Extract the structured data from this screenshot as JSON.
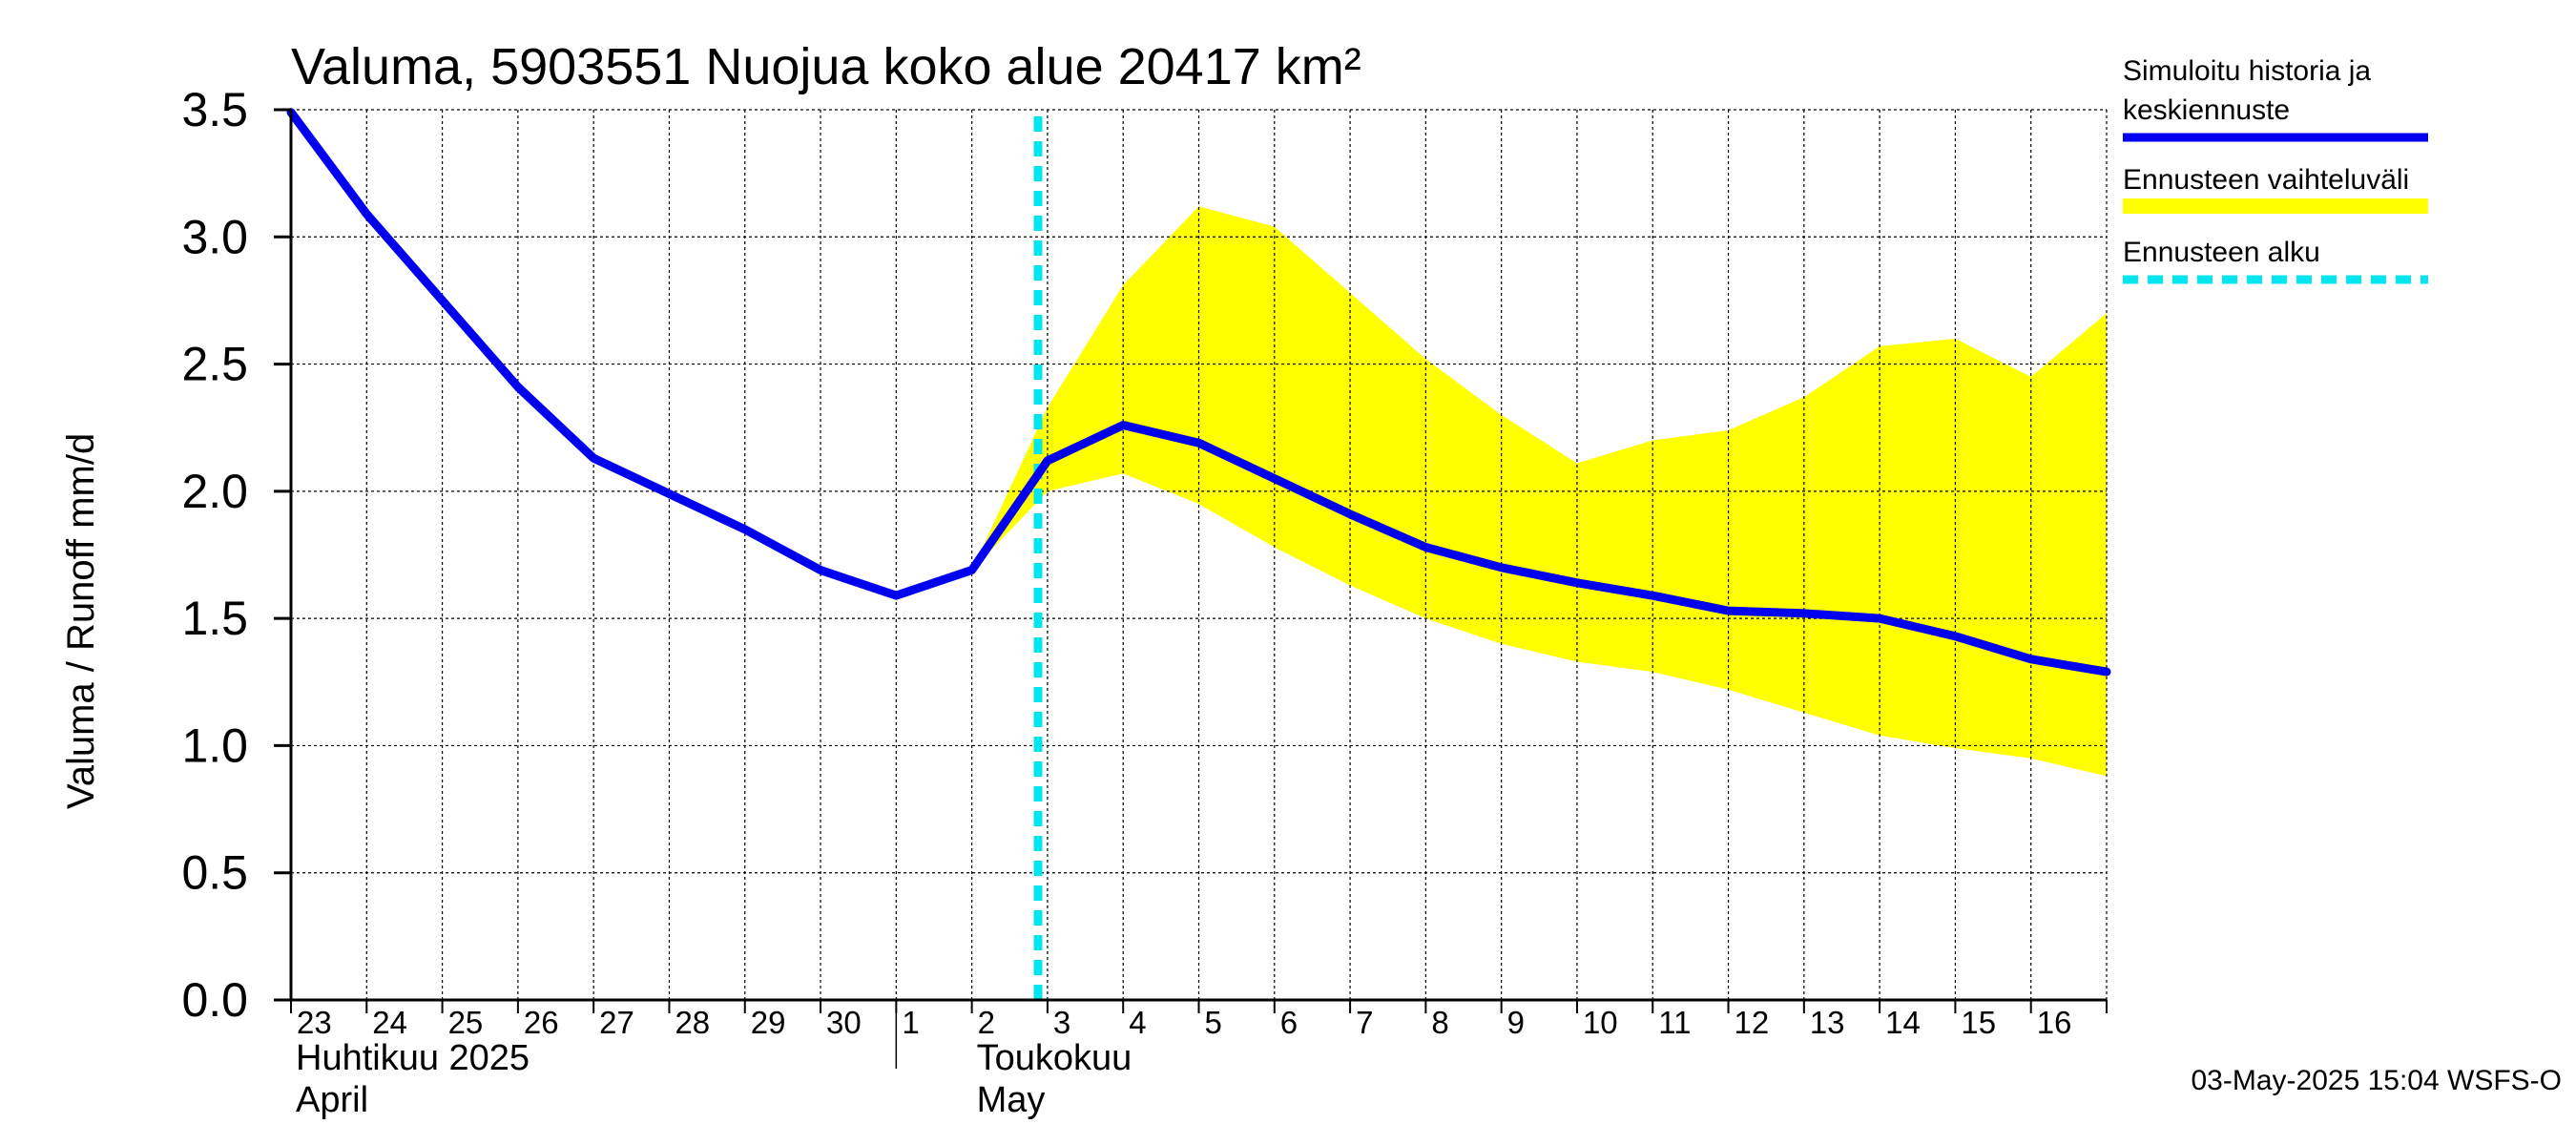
{
  "chart_data": {
    "type": "line",
    "title": "Valuma, 5903551 Nuojua koko alue 20417 km²",
    "ylabel": "Valuma / Runoff     mm/d",
    "ylim": [
      0,
      3.5
    ],
    "yticks": [
      "0.0",
      "0.5",
      "1.0",
      "1.5",
      "2.0",
      "2.5",
      "3.0",
      "3.5"
    ],
    "x_tick_labels": [
      "23",
      "24",
      "25",
      "26",
      "27",
      "28",
      "29",
      "30",
      "1",
      "2",
      "3",
      "4",
      "5",
      "6",
      "7",
      "8",
      "9",
      "10",
      "11",
      "12",
      "13",
      "14",
      "15",
      "16"
    ],
    "x_dates": [
      "2025-04-23",
      "2025-04-24",
      "2025-04-25",
      "2025-04-26",
      "2025-04-27",
      "2025-04-28",
      "2025-04-29",
      "2025-04-30",
      "2025-05-01",
      "2025-05-02",
      "2025-05-03",
      "2025-05-04",
      "2025-05-05",
      "2025-05-06",
      "2025-05-07",
      "2025-05-08",
      "2025-05-09",
      "2025-05-10",
      "2025-05-11",
      "2025-05-12",
      "2025-05-13",
      "2025-05-14",
      "2025-05-15",
      "2025-05-16"
    ],
    "x_end": "2025-05-17",
    "month_labels": [
      {
        "line1": "Huhtikuu  2025",
        "line2": "April",
        "start": "2025-04-23"
      },
      {
        "line1": "Toukokuu",
        "line2": "May",
        "start": "2025-05-02"
      }
    ],
    "month_boundary": "2025-05-01",
    "series": [
      {
        "name": "Simuloitu historia ja keskiennuste",
        "color": "#0000ee",
        "x": [
          "2025-04-23",
          "2025-04-24",
          "2025-04-25",
          "2025-04-26",
          "2025-04-27",
          "2025-04-28",
          "2025-04-29",
          "2025-04-30",
          "2025-05-01",
          "2025-05-02",
          "2025-05-03",
          "2025-05-04",
          "2025-05-05",
          "2025-05-06",
          "2025-05-07",
          "2025-05-08",
          "2025-05-09",
          "2025-05-10",
          "2025-05-11",
          "2025-05-12",
          "2025-05-13",
          "2025-05-14",
          "2025-05-15",
          "2025-05-16",
          "2025-05-17"
        ],
        "values": [
          3.49,
          3.09,
          2.75,
          2.41,
          2.13,
          1.99,
          1.85,
          1.69,
          1.59,
          1.69,
          2.12,
          2.26,
          2.19,
          2.05,
          1.91,
          1.78,
          1.7,
          1.64,
          1.59,
          1.53,
          1.52,
          1.5,
          1.43,
          1.34,
          1.29
        ]
      }
    ],
    "range_band": {
      "name": "Ennusteen vaihteluväli",
      "color": "#ffff00",
      "x": [
        "2025-05-02",
        "2025-05-03",
        "2025-05-04",
        "2025-05-05",
        "2025-05-06",
        "2025-05-07",
        "2025-05-08",
        "2025-05-09",
        "2025-05-10",
        "2025-05-11",
        "2025-05-12",
        "2025-05-13",
        "2025-05-14",
        "2025-05-15",
        "2025-05-16",
        "2025-05-17"
      ],
      "upper": [
        1.69,
        2.33,
        2.81,
        3.12,
        3.04,
        2.78,
        2.52,
        2.3,
        2.11,
        2.2,
        2.24,
        2.37,
        2.57,
        2.6,
        2.45,
        2.7
      ],
      "lower": [
        1.69,
        2.0,
        2.07,
        1.95,
        1.78,
        1.63,
        1.5,
        1.4,
        1.33,
        1.29,
        1.22,
        1.13,
        1.04,
        0.99,
        0.95,
        0.88
      ]
    },
    "forecast_start": {
      "name": "Ennusteen alku",
      "color": "#00e5ee",
      "x": "2025-05-02 21:00"
    },
    "legend": [
      {
        "label": "Simuloitu historia ja",
        "label2": "keskiennuste",
        "style": "solid",
        "color": "#0000ee"
      },
      {
        "label": "Ennusteen vaihteluväli",
        "style": "band",
        "color": "#ffff00"
      },
      {
        "label": "Ennusteen alku",
        "style": "dashed",
        "color": "#00e5ee"
      }
    ],
    "legend_position": "right",
    "grid": true,
    "footer": "03-May-2025 15:04 WSFS-O"
  }
}
